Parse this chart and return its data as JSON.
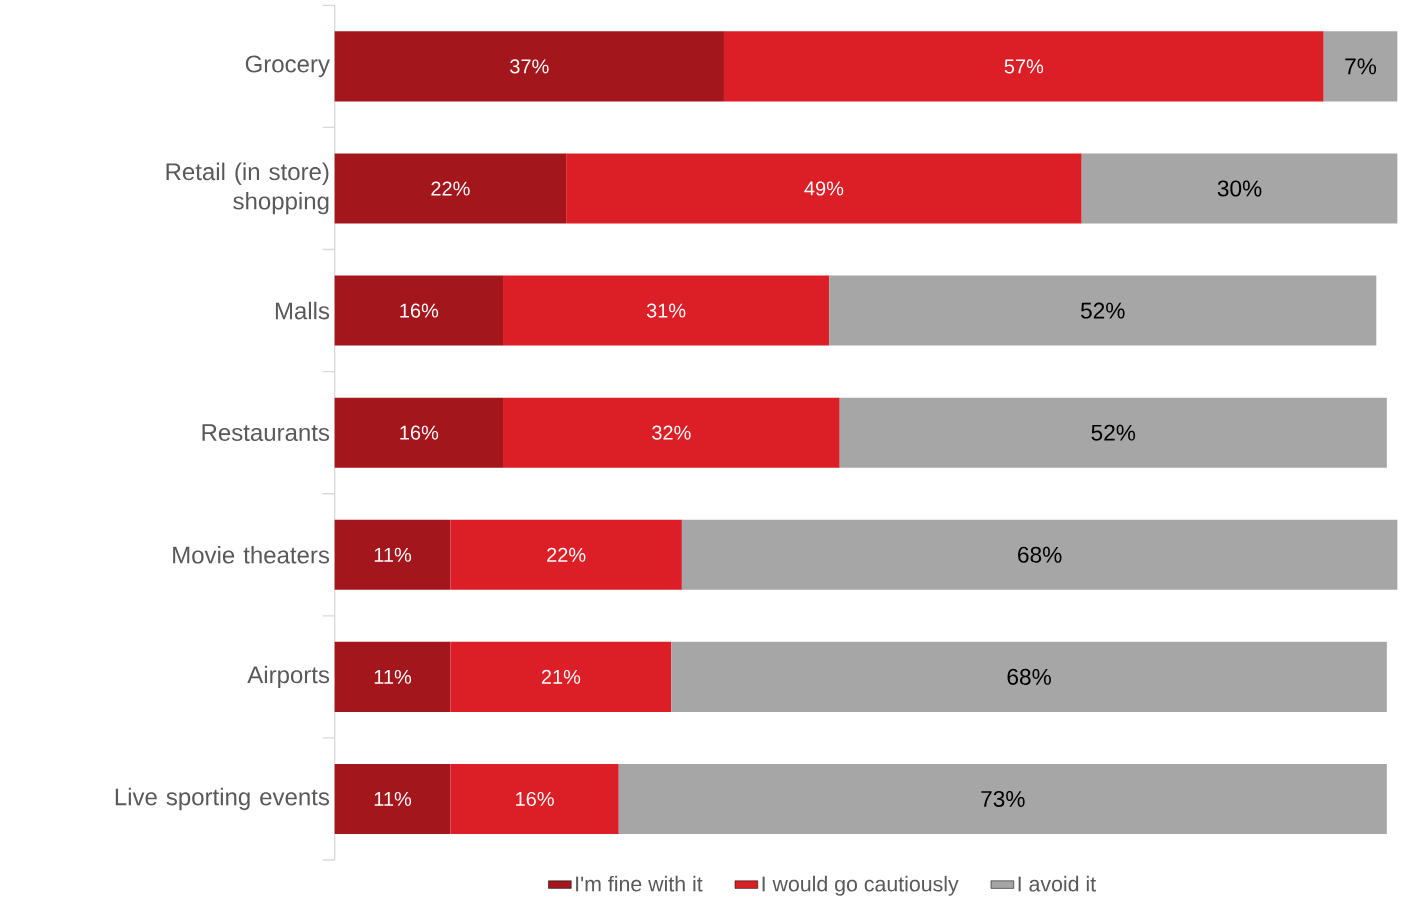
{
  "chart_data": {
    "type": "bar",
    "orientation": "horizontal",
    "stacked": true,
    "categories": [
      "Grocery",
      "Retail (in store) shopping",
      "Malls",
      "Restaurants",
      "Movie theaters",
      "Airports",
      "Live sporting events"
    ],
    "series": [
      {
        "name": "I'm fine with it",
        "color": "#a3171c",
        "values": [
          37,
          22,
          16,
          16,
          11,
          11,
          11
        ],
        "value_labels": [
          "37%",
          "22%",
          "16%",
          "16%",
          "11%",
          "11%",
          "11%"
        ]
      },
      {
        "name": "I would go cautiously",
        "color": "#dc1f26",
        "values": [
          57,
          49,
          31,
          32,
          22,
          21,
          16
        ],
        "value_labels": [
          "57%",
          "49%",
          "31%",
          "32%",
          "22%",
          "21%",
          "16%"
        ]
      },
      {
        "name": "I avoid it",
        "color": "#a6a6a6",
        "values": [
          7,
          30,
          52,
          52,
          68,
          68,
          73
        ],
        "value_labels": [
          "7%",
          "30%",
          "52%",
          "52%",
          "68%",
          "68%",
          "73%"
        ]
      }
    ],
    "legend": "bottom",
    "tick_labels": "y"
  }
}
